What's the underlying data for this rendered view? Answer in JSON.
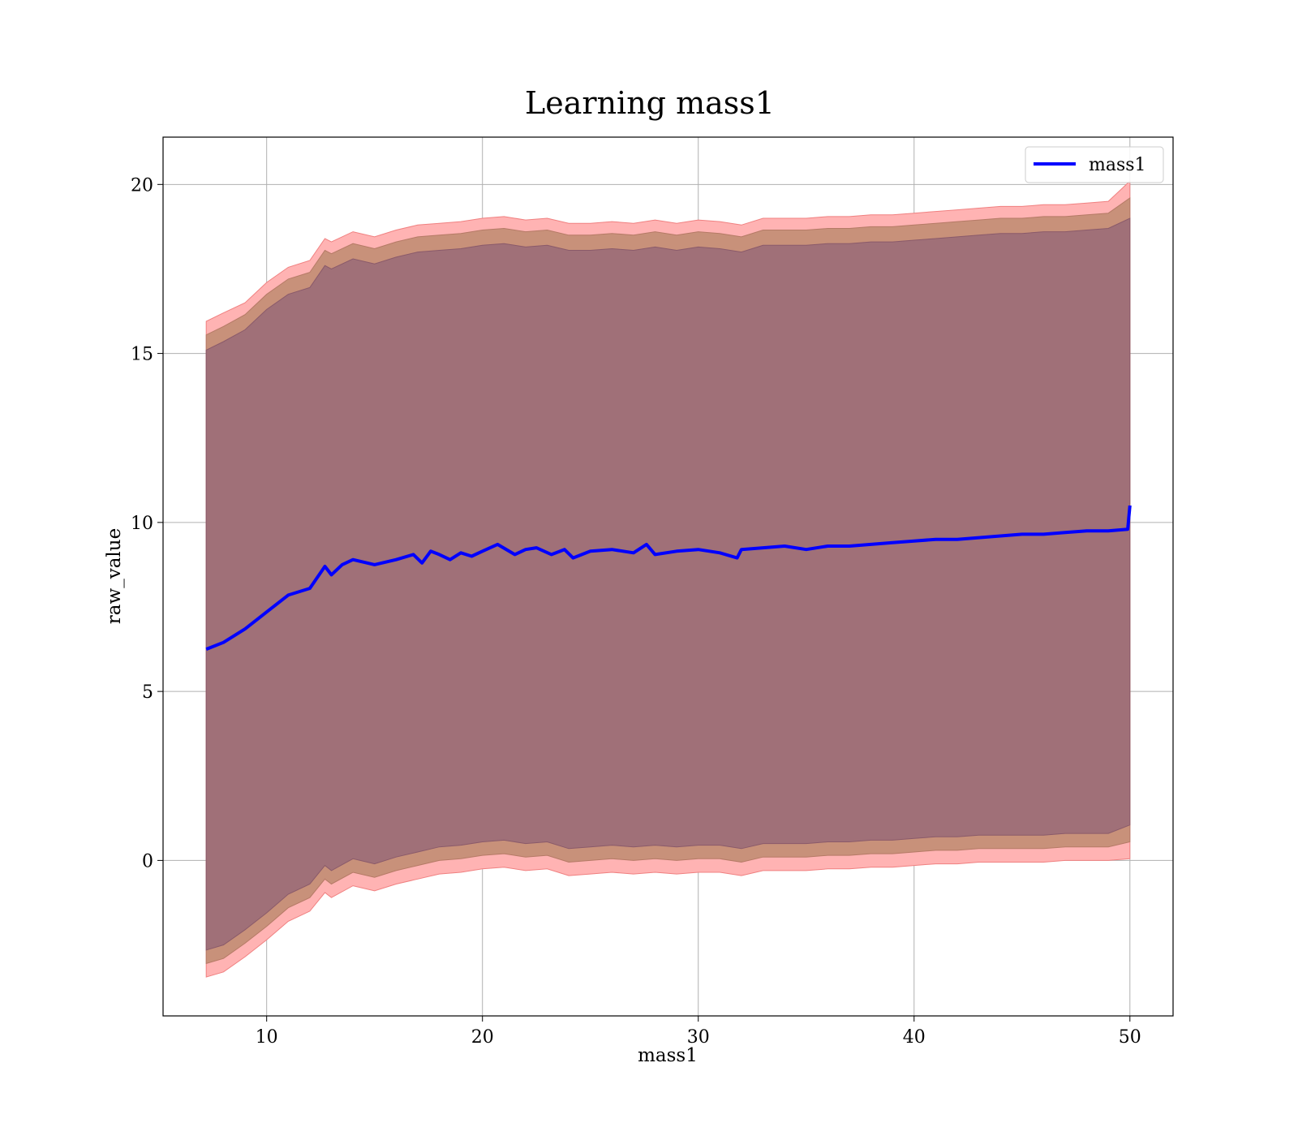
{
  "chart_data": {
    "type": "line",
    "title": "Learning mass1",
    "xlabel": "mass1",
    "ylabel": "raw_value",
    "xlim": [
      5.2,
      52
    ],
    "ylim": [
      -4.6,
      21.4
    ],
    "x_ticks": [
      10,
      20,
      30,
      40,
      50
    ],
    "y_ticks": [
      0,
      5,
      10,
      15,
      20
    ],
    "grid": true,
    "legend_position": "top-right",
    "colors": {
      "line": "#0000ff",
      "band_outer": "#ffb3b3",
      "band_middle": "#c8917a",
      "band_inner": "#a07078",
      "grid": "#b0b0b0"
    },
    "series": [
      {
        "name": "mass1",
        "x": [
          7.2,
          8,
          9,
          10,
          11,
          12,
          12.7,
          13,
          13.5,
          14,
          15,
          16,
          16.8,
          17.2,
          17.6,
          18,
          18.5,
          19,
          19.5,
          20,
          20.7,
          21.5,
          22,
          22.5,
          23.2,
          23.8,
          24.2,
          25,
          26,
          27,
          27.6,
          28,
          29,
          30,
          31,
          31.8,
          32,
          33,
          34,
          35,
          36,
          37,
          38,
          39,
          40,
          41,
          42,
          43,
          44,
          45,
          46,
          47,
          48,
          49,
          49.9,
          50
        ],
        "y": [
          6.25,
          6.45,
          6.85,
          7.35,
          7.85,
          8.05,
          8.7,
          8.45,
          8.75,
          8.9,
          8.75,
          8.9,
          9.05,
          8.8,
          9.15,
          9.05,
          8.9,
          9.1,
          9.0,
          9.15,
          9.35,
          9.05,
          9.2,
          9.25,
          9.05,
          9.2,
          8.95,
          9.15,
          9.2,
          9.1,
          9.35,
          9.05,
          9.15,
          9.2,
          9.1,
          8.95,
          9.2,
          9.25,
          9.3,
          9.2,
          9.3,
          9.3,
          9.35,
          9.4,
          9.45,
          9.5,
          9.5,
          9.55,
          9.6,
          9.65,
          9.65,
          9.7,
          9.75,
          9.75,
          9.8,
          10.5
        ]
      }
    ],
    "bands": [
      {
        "x": [
          7.2,
          8,
          9,
          10,
          11,
          12,
          12.7,
          13,
          14,
          15,
          16,
          17,
          18,
          19,
          20,
          21,
          22,
          23,
          24,
          25,
          26,
          27,
          28,
          29,
          30,
          31,
          32,
          33,
          34,
          35,
          36,
          37,
          38,
          39,
          40,
          41,
          42,
          43,
          44,
          45,
          46,
          47,
          48,
          49,
          50
        ],
        "upper": [
          15.95,
          16.2,
          16.5,
          17.1,
          17.55,
          17.75,
          18.4,
          18.3,
          18.6,
          18.45,
          18.65,
          18.8,
          18.85,
          18.9,
          19.0,
          19.05,
          18.95,
          19.0,
          18.85,
          18.85,
          18.9,
          18.85,
          18.95,
          18.85,
          18.95,
          18.9,
          18.8,
          19.0,
          19.0,
          19.0,
          19.05,
          19.05,
          19.1,
          19.1,
          19.15,
          19.2,
          19.25,
          19.3,
          19.35,
          19.35,
          19.4,
          19.4,
          19.45,
          19.5,
          20.1
        ],
        "lower": [
          -3.45,
          -3.3,
          -2.85,
          -2.35,
          -1.8,
          -1.5,
          -0.95,
          -1.1,
          -0.75,
          -0.9,
          -0.7,
          -0.55,
          -0.4,
          -0.35,
          -0.25,
          -0.2,
          -0.3,
          -0.25,
          -0.45,
          -0.4,
          -0.35,
          -0.4,
          -0.35,
          -0.4,
          -0.35,
          -0.35,
          -0.45,
          -0.3,
          -0.3,
          -0.3,
          -0.25,
          -0.25,
          -0.2,
          -0.2,
          -0.15,
          -0.1,
          -0.1,
          -0.05,
          -0.05,
          -0.05,
          -0.05,
          0.0,
          0.0,
          0.0,
          0.05
        ]
      },
      {
        "x": [
          7.2,
          8,
          9,
          10,
          11,
          12,
          12.7,
          13,
          14,
          15,
          16,
          17,
          18,
          19,
          20,
          21,
          22,
          23,
          24,
          25,
          26,
          27,
          28,
          29,
          30,
          31,
          32,
          33,
          34,
          35,
          36,
          37,
          38,
          39,
          40,
          41,
          42,
          43,
          44,
          45,
          46,
          47,
          48,
          49,
          50
        ],
        "upper": [
          15.55,
          15.8,
          16.15,
          16.75,
          17.2,
          17.4,
          18.05,
          17.95,
          18.25,
          18.1,
          18.3,
          18.45,
          18.5,
          18.55,
          18.65,
          18.7,
          18.6,
          18.65,
          18.5,
          18.5,
          18.55,
          18.5,
          18.6,
          18.5,
          18.6,
          18.55,
          18.45,
          18.65,
          18.65,
          18.65,
          18.7,
          18.7,
          18.75,
          18.75,
          18.8,
          18.85,
          18.9,
          18.95,
          19.0,
          19.0,
          19.05,
          19.05,
          19.1,
          19.15,
          19.6
        ],
        "lower": [
          -3.05,
          -2.9,
          -2.45,
          -1.95,
          -1.4,
          -1.1,
          -0.55,
          -0.7,
          -0.35,
          -0.5,
          -0.3,
          -0.15,
          0.0,
          0.05,
          0.15,
          0.2,
          0.1,
          0.15,
          -0.05,
          0.0,
          0.05,
          0.0,
          0.05,
          0.0,
          0.05,
          0.05,
          -0.05,
          0.1,
          0.1,
          0.1,
          0.15,
          0.15,
          0.2,
          0.2,
          0.25,
          0.3,
          0.3,
          0.35,
          0.35,
          0.35,
          0.35,
          0.4,
          0.4,
          0.4,
          0.55
        ]
      },
      {
        "x": [
          7.2,
          8,
          9,
          10,
          11,
          12,
          12.7,
          13,
          14,
          15,
          16,
          17,
          18,
          19,
          20,
          21,
          22,
          23,
          24,
          25,
          26,
          27,
          28,
          29,
          30,
          31,
          32,
          33,
          34,
          35,
          36,
          37,
          38,
          39,
          40,
          41,
          42,
          43,
          44,
          45,
          46,
          47,
          48,
          49,
          50
        ],
        "upper": [
          15.1,
          15.35,
          15.7,
          16.3,
          16.75,
          16.95,
          17.6,
          17.5,
          17.8,
          17.65,
          17.85,
          18.0,
          18.05,
          18.1,
          18.2,
          18.25,
          18.15,
          18.2,
          18.05,
          18.05,
          18.1,
          18.05,
          18.15,
          18.05,
          18.15,
          18.1,
          18.0,
          18.2,
          18.2,
          18.2,
          18.25,
          18.25,
          18.3,
          18.3,
          18.35,
          18.4,
          18.45,
          18.5,
          18.55,
          18.55,
          18.6,
          18.6,
          18.65,
          18.7,
          19.0
        ],
        "lower": [
          -2.65,
          -2.5,
          -2.05,
          -1.55,
          -1.0,
          -0.7,
          -0.15,
          -0.3,
          0.05,
          -0.1,
          0.1,
          0.25,
          0.4,
          0.45,
          0.55,
          0.6,
          0.5,
          0.55,
          0.35,
          0.4,
          0.45,
          0.4,
          0.45,
          0.4,
          0.45,
          0.45,
          0.35,
          0.5,
          0.5,
          0.5,
          0.55,
          0.55,
          0.6,
          0.6,
          0.65,
          0.7,
          0.7,
          0.75,
          0.75,
          0.75,
          0.75,
          0.8,
          0.8,
          0.8,
          1.05
        ]
      }
    ]
  }
}
